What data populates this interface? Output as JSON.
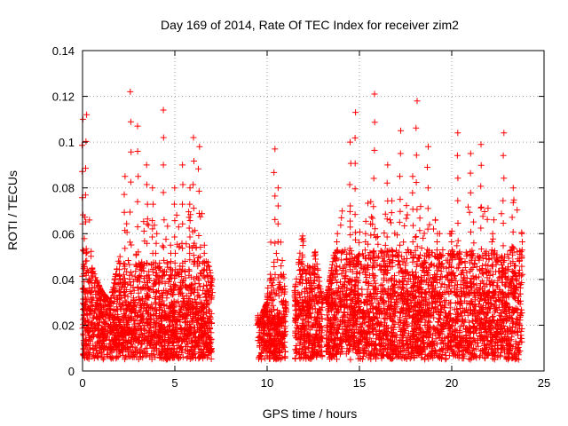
{
  "chart_data": {
    "type": "scatter",
    "title": "Day 169 of 2014, Rate Of TEC Index for receiver zim2",
    "xlabel": "GPS time / hours",
    "ylabel": "ROTI / TECUs",
    "xlim": [
      0,
      25
    ],
    "ylim": [
      0,
      0.14
    ],
    "x_ticks": [
      0,
      5,
      10,
      15,
      20,
      25
    ],
    "x_tick_labels": [
      "0",
      "5",
      "10",
      "15",
      "20",
      "25"
    ],
    "y_ticks": [
      0,
      0.02,
      0.04,
      0.06,
      0.08,
      0.1,
      0.12,
      0.14
    ],
    "y_tick_labels": [
      "0",
      "0.02",
      "0.04",
      "0.06",
      "0.08",
      "0.1",
      "0.12",
      "0.14"
    ],
    "grid": true,
    "marker": "+",
    "marker_color": "#ff0000",
    "series": [
      {
        "name": "ROTI",
        "segments": [
          {
            "start": 0.0,
            "end": 7.0,
            "typical": [
              0.005,
              0.03
            ],
            "envelope": [
              [
                0.0,
                0.11
              ],
              [
                0.2,
                0.112
              ],
              [
                0.5,
                0.045
              ],
              [
                1.0,
                0.035
              ],
              [
                1.5,
                0.03
              ],
              [
                2.0,
                0.05
              ],
              [
                2.3,
                0.085
              ],
              [
                2.6,
                0.122
              ],
              [
                3.0,
                0.107
              ],
              [
                3.5,
                0.09
              ],
              [
                3.8,
                0.08
              ],
              [
                4.0,
                0.06
              ],
              [
                4.4,
                0.114
              ],
              [
                4.8,
                0.055
              ],
              [
                5.0,
                0.08
              ],
              [
                5.4,
                0.09
              ],
              [
                5.8,
                0.08
              ],
              [
                6.0,
                0.102
              ],
              [
                6.3,
                0.098
              ],
              [
                6.6,
                0.055
              ],
              [
                7.0,
                0.04
              ]
            ]
          },
          {
            "start": 9.5,
            "end": 11.0,
            "typical": [
              0.005,
              0.025
            ],
            "envelope": [
              [
                9.5,
                0.02
              ],
              [
                10.0,
                0.03
              ],
              [
                10.4,
                0.097
              ],
              [
                10.6,
                0.08
              ],
              [
                11.0,
                0.03
              ]
            ]
          },
          {
            "start": 11.5,
            "end": 13.0,
            "typical": [
              0.005,
              0.03
            ],
            "envelope": [
              [
                11.5,
                0.035
              ],
              [
                11.9,
                0.059
              ],
              [
                12.3,
                0.045
              ],
              [
                12.6,
                0.052
              ],
              [
                13.0,
                0.03
              ]
            ]
          },
          {
            "start": 13.2,
            "end": 23.8,
            "typical": [
              0.005,
              0.035
            ],
            "envelope": [
              [
                13.2,
                0.03
              ],
              [
                13.8,
                0.06
              ],
              [
                14.5,
                0.1
              ],
              [
                14.8,
                0.113
              ],
              [
                15.3,
                0.06
              ],
              [
                15.8,
                0.121
              ],
              [
                16.5,
                0.09
              ],
              [
                17.2,
                0.105
              ],
              [
                17.9,
                0.085
              ],
              [
                18.1,
                0.118
              ],
              [
                18.7,
                0.098
              ],
              [
                19.2,
                0.06
              ],
              [
                20.0,
                0.06
              ],
              [
                20.3,
                0.104
              ],
              [
                21.0,
                0.095
              ],
              [
                21.6,
                0.099
              ],
              [
                22.2,
                0.06
              ],
              [
                22.8,
                0.104
              ],
              [
                23.3,
                0.08
              ],
              [
                23.8,
                0.06
              ]
            ]
          }
        ]
      }
    ]
  }
}
